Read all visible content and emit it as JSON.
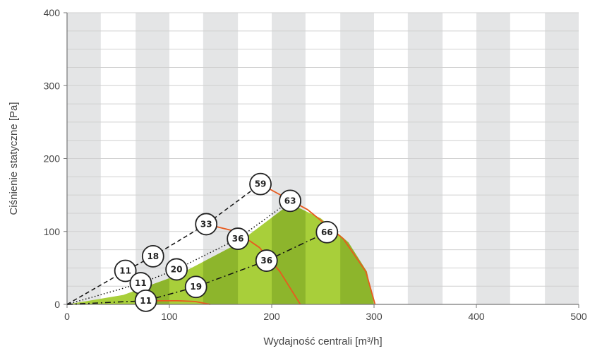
{
  "chart_data": {
    "type": "line",
    "xlabel": "Wydajność centrali [m³/h]",
    "ylabel": "Ciśnienie statyczne [Pa]",
    "xlim": [
      0,
      500
    ],
    "ylim": [
      0,
      400
    ],
    "xticks": [
      "0",
      "100",
      "200",
      "300",
      "400",
      "500"
    ],
    "yticks": [
      "0",
      "100",
      "200",
      "300",
      "400"
    ],
    "grid": true,
    "background_bands_x": [
      [
        0,
        33
      ],
      [
        67,
        100
      ],
      [
        133,
        167
      ],
      [
        200,
        233
      ],
      [
        267,
        300
      ],
      [
        333,
        367
      ],
      [
        400,
        433
      ],
      [
        467,
        500
      ]
    ],
    "colors": {
      "band": "#e4e5e6",
      "gridline": "#d0d0d0",
      "axis": "#777777",
      "operating_area_light": "#a8cf3a",
      "operating_area_dark": "#8db52c",
      "speed_curve": "#e85a1e",
      "marker_fill": "#ffffff",
      "marker_stroke": "#222222"
    },
    "operating_area": [
      [
        0,
        0
      ],
      [
        55,
        13
      ],
      [
        108,
        40
      ],
      [
        165,
        82
      ],
      [
        218,
        138
      ],
      [
        248,
        118
      ],
      [
        275,
        85
      ],
      [
        293,
        45
      ],
      [
        300,
        0
      ]
    ],
    "series": [
      {
        "style": "dashed",
        "points": [
          [
            0,
            0
          ],
          [
            57,
            46
          ],
          [
            84,
            66
          ],
          [
            136,
            110
          ],
          [
            189,
            165
          ]
        ]
      },
      {
        "style": "dotted",
        "points": [
          [
            0,
            0
          ],
          [
            72,
            29
          ],
          [
            107,
            48
          ],
          [
            167,
            90
          ],
          [
            218,
            142
          ]
        ]
      },
      {
        "style": "dash-dot",
        "points": [
          [
            0,
            0
          ],
          [
            77,
            5
          ],
          [
            126,
            24
          ],
          [
            195,
            60
          ],
          [
            254,
            99
          ]
        ]
      }
    ],
    "speed_curves": [
      [
        [
          75,
          5
        ],
        [
          108,
          5
        ],
        [
          125,
          4
        ],
        [
          140,
          0
        ]
      ],
      [
        [
          136,
          110
        ],
        [
          165,
          100
        ],
        [
          188,
          78
        ],
        [
          208,
          45
        ],
        [
          228,
          0
        ]
      ],
      [
        [
          189,
          165
        ],
        [
          235,
          130
        ],
        [
          270,
          90
        ],
        [
          292,
          45
        ],
        [
          301,
          0
        ]
      ]
    ],
    "markers": [
      {
        "x": 57,
        "y": 46,
        "label": "11"
      },
      {
        "x": 84,
        "y": 66,
        "label": "18"
      },
      {
        "x": 136,
        "y": 110,
        "label": "33"
      },
      {
        "x": 189,
        "y": 165,
        "label": "59"
      },
      {
        "x": 72,
        "y": 29,
        "label": "11"
      },
      {
        "x": 107,
        "y": 48,
        "label": "20"
      },
      {
        "x": 167,
        "y": 90,
        "label": "36"
      },
      {
        "x": 218,
        "y": 142,
        "label": "63"
      },
      {
        "x": 77,
        "y": 5,
        "label": "11"
      },
      {
        "x": 126,
        "y": 24,
        "label": "19"
      },
      {
        "x": 195,
        "y": 60,
        "label": "36"
      },
      {
        "x": 254,
        "y": 99,
        "label": "66"
      }
    ]
  }
}
